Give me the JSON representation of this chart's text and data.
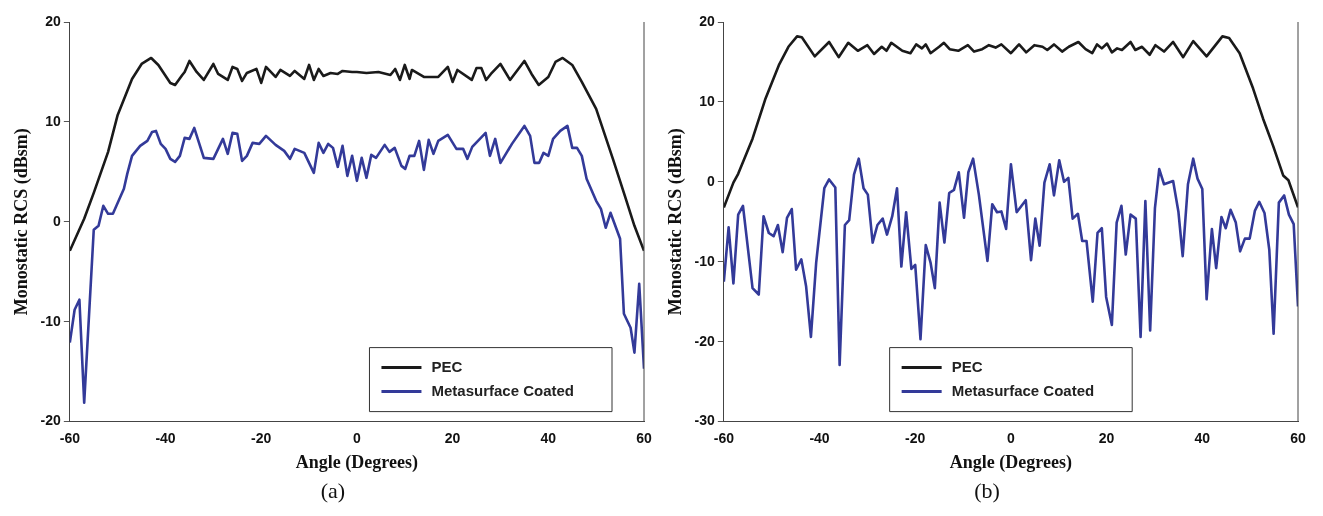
{
  "chart_data": [
    {
      "type": "line",
      "xlabel": "Angle (Degrees)",
      "ylabel": "Monostatic RCS (dBsm)",
      "xlim": [
        -60,
        60
      ],
      "xticks": [
        -60,
        -40,
        -20,
        0,
        20,
        40,
        60
      ],
      "ylim": [
        -20,
        20
      ],
      "yticks": [
        -20,
        -10,
        0,
        10,
        20
      ],
      "grid": false,
      "legend": "bottom right",
      "marker": "none",
      "line_style": "solid",
      "annotations": [
        "(a)"
      ],
      "series": [
        {
          "name": "PEC",
          "color": "#1a1a1a",
          "x": [
            -60,
            -57,
            -55,
            -52,
            -50,
            -47,
            -45,
            -43,
            -41.5,
            -39,
            -38,
            -36.5,
            -36,
            -35,
            -33.5,
            -32,
            -30,
            -29,
            -27,
            -26,
            -25,
            -24,
            -23,
            -21,
            -20,
            -19,
            -17,
            -16,
            -14,
            -13,
            -11,
            -10,
            -9,
            -8,
            -7,
            -5.5,
            -4,
            -3,
            -1,
            0,
            2,
            4.5,
            7,
            8,
            9,
            10,
            11,
            11.5,
            14,
            17,
            19,
            20,
            21,
            24,
            25,
            26,
            27,
            28,
            30,
            32,
            35,
            36.5,
            38,
            40,
            41.5,
            43,
            45,
            47,
            50,
            53.5,
            56,
            58,
            60
          ],
          "values": [
            -2.9,
            0.3,
            2.9,
            7,
            10.7,
            14.3,
            15.8,
            16.4,
            15.7,
            13.9,
            13.7,
            14.7,
            15,
            16.1,
            15,
            14.2,
            15.8,
            14.8,
            14.2,
            15.5,
            15.3,
            14.1,
            14.9,
            15.3,
            13.9,
            15.5,
            14.5,
            15.2,
            14.6,
            15.1,
            14.3,
            15.7,
            14.2,
            15.3,
            14.6,
            14.9,
            14.8,
            15.1,
            15,
            15,
            14.9,
            15,
            14.7,
            15.3,
            14.2,
            15.7,
            14.3,
            15.2,
            14.5,
            14.5,
            15.5,
            14,
            15.2,
            14.2,
            15.4,
            15.4,
            14.2,
            14.8,
            15.8,
            14.2,
            16.1,
            14.8,
            13.7,
            14.5,
            16,
            16.4,
            15.7,
            14,
            11.3,
            6.3,
            2.6,
            -0.4,
            -2.9
          ]
        },
        {
          "name": "Metasurface Coated",
          "color": "#333a99",
          "x": [
            -60,
            -59,
            -58,
            -57,
            -55,
            -54,
            -53,
            -52,
            -51,
            -48.7,
            -48,
            -47,
            -45.3,
            -43.8,
            -42.8,
            -42,
            -41,
            -40,
            -39,
            -38,
            -37,
            -36,
            -35,
            -34,
            -33,
            -32,
            -30,
            -29,
            -28,
            -27,
            -26,
            -25,
            -24,
            -23,
            -21.8,
            -20.4,
            -19,
            -17,
            -15.2,
            -14,
            -13,
            -11,
            -9,
            -8,
            -7,
            -6,
            -5,
            -4,
            -3,
            -2,
            -1,
            0,
            1,
            2,
            3,
            4,
            5.8,
            6.8,
            7.9,
            9.3,
            10.1,
            11,
            12,
            13,
            14,
            15,
            16,
            17,
            19,
            20.8,
            22.2,
            23.1,
            24.1,
            26.9,
            27.8,
            28.9,
            30,
            32.4,
            35,
            36.2,
            37.1,
            38.1,
            39,
            40,
            41,
            42.5,
            44,
            45,
            46,
            47,
            48,
            50,
            51,
            52,
            53,
            55,
            55.8,
            57.2,
            58,
            59,
            60
          ],
          "values": [
            -12.1,
            -8.8,
            -7.8,
            -18.1,
            -0.8,
            -0.4,
            1.6,
            0.8,
            0.8,
            3.3,
            4.8,
            6.6,
            7.6,
            8.1,
            9,
            9.1,
            7.8,
            7.3,
            6.3,
            6,
            6.6,
            8.4,
            8.3,
            9.4,
            7.9,
            6.4,
            6.3,
            7.3,
            8.3,
            6.8,
            8.9,
            8.8,
            6.1,
            6.6,
            7.9,
            7.8,
            8.6,
            7.7,
            7.1,
            6.3,
            7.3,
            6.9,
            4.9,
            7.9,
            6.9,
            7.8,
            7.4,
            5.5,
            7.6,
            4.6,
            6.6,
            4.1,
            6.4,
            4.4,
            6.7,
            6.4,
            7.7,
            7,
            7.4,
            5.6,
            5.3,
            6.6,
            6.6,
            8.1,
            5.2,
            8.2,
            6.8,
            8.1,
            8.7,
            7.3,
            7.3,
            6.3,
            7.5,
            8.9,
            6.6,
            8.3,
            5.9,
            7.8,
            9.6,
            8.6,
            5.9,
            5.9,
            6.9,
            6.6,
            8.3,
            9.1,
            9.6,
            7.4,
            7.4,
            6.6,
            4.3,
            2.1,
            1.3,
            -0.6,
            0.9,
            -1.7,
            -9.2,
            -10.6,
            -13.1,
            -6.2,
            -14.7
          ]
        }
      ]
    },
    {
      "type": "line",
      "xlabel": "Angle (Degrees)",
      "ylabel": "Monostatic RCS (dBsm)",
      "xlim": [
        -60,
        60
      ],
      "xticks": [
        -60,
        -40,
        -20,
        0,
        20,
        40,
        60
      ],
      "ylim": [
        -30,
        20
      ],
      "yticks": [
        -30,
        -20,
        -10,
        0,
        10,
        20
      ],
      "grid": false,
      "legend": "bottom",
      "marker": "none",
      "line_style": "solid",
      "annotations": [
        "(b)"
      ],
      "series": [
        {
          "name": "PEC",
          "color": "#1a1a1a",
          "x": [
            -60,
            -58,
            -57,
            -54,
            -51.3,
            -48.5,
            -46.5,
            -44.7,
            -43.7,
            -41,
            -38,
            -36,
            -34,
            -32,
            -30,
            -28.6,
            -27,
            -26,
            -25,
            -22.7,
            -21,
            -19.8,
            -18.6,
            -17.8,
            -16.8,
            -15,
            -14,
            -12.8,
            -11,
            -9,
            -7.7,
            -6,
            -4.6,
            -3.2,
            -2,
            0,
            1.7,
            3.2,
            4.9,
            6.6,
            7.6,
            9,
            10.7,
            12.1,
            14.1,
            15.6,
            17,
            18,
            19,
            20.1,
            21.1,
            22.2,
            23.2,
            25,
            26,
            27.4,
            29,
            30.2,
            32,
            33.9,
            36,
            38.1,
            40.9,
            44.2,
            45.6,
            47.8,
            50.6,
            52.7,
            54.8,
            56.9,
            58,
            60
          ],
          "values": [
            -3.2,
            -0.1,
            1,
            5.4,
            10.4,
            14.6,
            16.9,
            18.2,
            18.1,
            15.7,
            17.5,
            15.6,
            17.4,
            16.4,
            17.1,
            16,
            16.9,
            16.4,
            17.4,
            16.4,
            16.1,
            17.2,
            16.7,
            17.2,
            16.1,
            16.9,
            17.4,
            16.6,
            16.4,
            17.1,
            16.3,
            16.6,
            17.1,
            16.8,
            17.2,
            16.1,
            17.2,
            16.2,
            17.1,
            16.9,
            16.5,
            17.2,
            16.3,
            16.9,
            17.5,
            16.6,
            16.1,
            17.2,
            16.7,
            17.3,
            16.2,
            16.7,
            16.5,
            17.5,
            16.5,
            16.9,
            15.9,
            17.1,
            16.3,
            17.5,
            15.6,
            17.6,
            15.7,
            18.2,
            18,
            16.1,
            11.7,
            7.9,
            4.5,
            0.8,
            0.2,
            -3.2
          ]
        },
        {
          "name": "Metasurface Coated",
          "color": "#333a99",
          "x": [
            -60,
            -59,
            -58,
            -57,
            -56,
            -54,
            -52.7,
            -51.7,
            -50.6,
            -49.6,
            -48.7,
            -47.7,
            -46.8,
            -45.8,
            -44.9,
            -43.8,
            -42.8,
            -41.8,
            -40.7,
            -39,
            -38,
            -36.7,
            -35.8,
            -34.7,
            -33.8,
            -32.8,
            -31.8,
            -30.8,
            -29.9,
            -28.9,
            -27.9,
            -26.8,
            -25.9,
            -24.8,
            -23.8,
            -22.9,
            -21.9,
            -20.8,
            -20,
            -18.9,
            -17.8,
            -16.8,
            -15.9,
            -14.9,
            -13.9,
            -12.9,
            -11.9,
            -10.9,
            -9.8,
            -8.9,
            -7.9,
            -6.7,
            -4.9,
            -3.9,
            -2.9,
            -2,
            -1,
            0,
            1.2,
            3.1,
            4.2,
            5.1,
            6,
            7,
            8.1,
            9,
            10.1,
            11.1,
            12,
            12.9,
            14,
            14.9,
            15.8,
            17.1,
            18.1,
            19,
            19.9,
            21.1,
            22.1,
            23.1,
            24,
            25,
            26.1,
            27.1,
            28.1,
            29.1,
            30.1,
            31,
            32,
            33.9,
            35,
            35.9,
            37,
            38.1,
            39,
            40,
            40.9,
            42,
            42.9,
            44,
            44.9,
            45.9,
            47,
            47.9,
            48.9,
            49.9,
            51,
            51.9,
            53,
            54,
            54.9,
            56,
            57.1,
            58.1,
            59.1,
            60
          ],
          "values": [
            -12.5,
            -5.7,
            -12.7,
            -4.1,
            -3,
            -13.3,
            -14.1,
            -4.3,
            -6.4,
            -6.8,
            -5.4,
            -8.8,
            -4.5,
            -3.4,
            -11,
            -9.7,
            -13.1,
            -19.4,
            -10.1,
            -0.8,
            0.3,
            -0.7,
            -22.9,
            -5.4,
            -4.8,
            0.9,
            2.9,
            -0.8,
            -1.6,
            -7.6,
            -5.4,
            -4.6,
            -6.6,
            -4.3,
            -0.8,
            -10.6,
            -3.8,
            -10.9,
            -10.4,
            -19.7,
            -7.9,
            -10.1,
            -13.3,
            -2.6,
            -7.6,
            -1.4,
            -1,
            1.2,
            -4.5,
            1.2,
            2.9,
            -1.6,
            -9.9,
            -2.8,
            -3.8,
            -3.7,
            -5.9,
            2.2,
            -3.8,
            -2.3,
            -9.8,
            -4.6,
            -8,
            -0.1,
            2.2,
            -1.7,
            2.7,
            0,
            0.5,
            -4.6,
            -4,
            -7.4,
            -7.4,
            -15,
            -6.4,
            -5.8,
            -14.4,
            -17.9,
            -5.1,
            -3,
            -9.1,
            -4.1,
            -4.6,
            -19.4,
            -2.4,
            -18.6,
            -3.3,
            1.6,
            -0.3,
            0.1,
            -3.7,
            -9.3,
            -0.3,
            2.9,
            0.4,
            -0.9,
            -14.7,
            -5.9,
            -10.8,
            -4.4,
            -5.8,
            -3.5,
            -5.1,
            -8.7,
            -7.1,
            -7.1,
            -3.6,
            -2.5,
            -3.9,
            -8.5,
            -19,
            -2.6,
            -1.7,
            -4.1,
            -5.3,
            -15.6
          ]
        }
      ]
    }
  ]
}
